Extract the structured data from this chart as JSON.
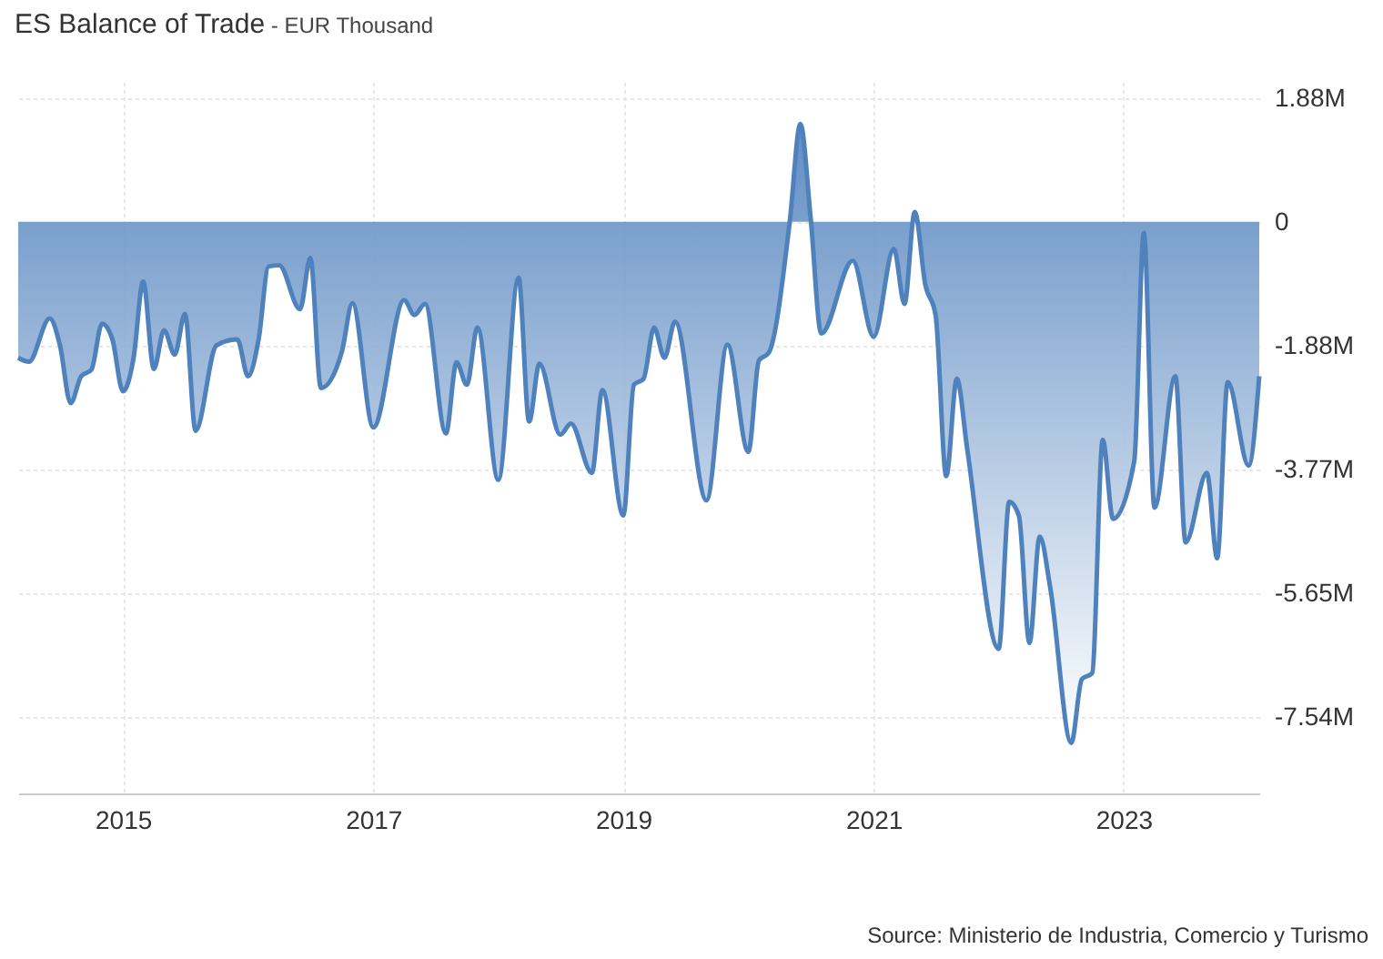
{
  "chart_data": {
    "type": "area",
    "title": "ES Balance of Trade",
    "subtitle": "- EUR Thousand",
    "annotations": [
      "Source: Ministerio de Industria, Comercio y Turismo"
    ],
    "x": [
      "2014-03",
      "2014-04",
      "2014-06",
      "2014-07",
      "2014-08",
      "2014-09",
      "2014-10",
      "2014-11",
      "2014-12",
      "2015-01",
      "2015-02",
      "2015-03",
      "2015-04",
      "2015-05",
      "2015-06",
      "2015-07",
      "2015-08",
      "2015-10",
      "2015-12",
      "2016-01",
      "2016-02",
      "2016-03",
      "2016-04",
      "2016-06",
      "2016-07",
      "2016-08",
      "2016-10",
      "2016-11",
      "2017-01",
      "2017-04",
      "2017-05",
      "2017-06",
      "2017-08",
      "2017-09",
      "2017-10",
      "2017-11",
      "2018-01",
      "2018-03",
      "2018-04",
      "2018-05",
      "2018-07",
      "2018-08",
      "2018-10",
      "2018-11",
      "2019-01",
      "2019-02",
      "2019-03",
      "2019-04",
      "2019-05",
      "2019-06",
      "2019-09",
      "2019-11",
      "2020-01",
      "2020-02",
      "2020-03",
      "2020-05",
      "2020-06",
      "2020-07",
      "2020-08",
      "2020-11",
      "2021-01",
      "2021-03",
      "2021-04",
      "2021-05",
      "2021-06",
      "2021-07",
      "2021-08",
      "2021-09",
      "2021-10",
      "2022-01",
      "2022-02",
      "2022-03",
      "2022-04",
      "2022-05",
      "2022-06",
      "2022-08",
      "2022-09",
      "2022-10",
      "2022-11",
      "2022-12",
      "2023-02",
      "2023-03",
      "2023-04",
      "2023-06",
      "2023-07",
      "2023-09",
      "2023-10",
      "2023-11",
      "2024-01",
      "2024-02"
    ],
    "series": [
      {
        "color": "#4f81bd",
        "values": [
          -2070000,
          -2130000,
          -1470000,
          -1880000,
          -2760000,
          -2350000,
          -2250000,
          -1550000,
          -1790000,
          -2580000,
          -2070000,
          -910000,
          -2240000,
          -1650000,
          -2020000,
          -1400000,
          -3180000,
          -1880000,
          -1790000,
          -2350000,
          -1790000,
          -680000,
          -660000,
          -1330000,
          -550000,
          -2530000,
          -1980000,
          -1240000,
          -3130000,
          -1190000,
          -1420000,
          -1250000,
          -3220000,
          -2140000,
          -2480000,
          -1610000,
          -3930000,
          -850000,
          -3040000,
          -2160000,
          -3240000,
          -3070000,
          -3820000,
          -2560000,
          -4470000,
          -2480000,
          -2390000,
          -1610000,
          -2070000,
          -1520000,
          -4240000,
          -1870000,
          -3500000,
          -2110000,
          -1990000,
          0,
          1490000,
          60000,
          -1700000,
          -590000,
          -1750000,
          -410000,
          -1250000,
          150000,
          -960000,
          -1420000,
          -3870000,
          -2390000,
          -3450000,
          -6500000,
          -4260000,
          -4470000,
          -6410000,
          -4790000,
          -5580000,
          -7930000,
          -6960000,
          -6870000,
          -3320000,
          -4520000,
          -3640000,
          -170000,
          -4350000,
          -2350000,
          -4880000,
          -3820000,
          -5120000,
          -2440000,
          -3710000,
          -2350000
        ]
      }
    ],
    "xlim": [
      "2014-03",
      "2024-02"
    ],
    "xticks": [
      "2015",
      "2017",
      "2019",
      "2021",
      "2023"
    ],
    "ylim": [
      -8700000,
      2130000
    ],
    "yticks": [
      {
        "value": 1885000,
        "label": "1.88M"
      },
      {
        "value": 0,
        "label": "0"
      },
      {
        "value": -1885000,
        "label": "-1.88M"
      },
      {
        "value": -3770000,
        "label": "-3.77M"
      },
      {
        "value": -5655000,
        "label": "-5.65M"
      },
      {
        "value": -7540000,
        "label": "-7.54M"
      }
    ],
    "grid": true
  }
}
